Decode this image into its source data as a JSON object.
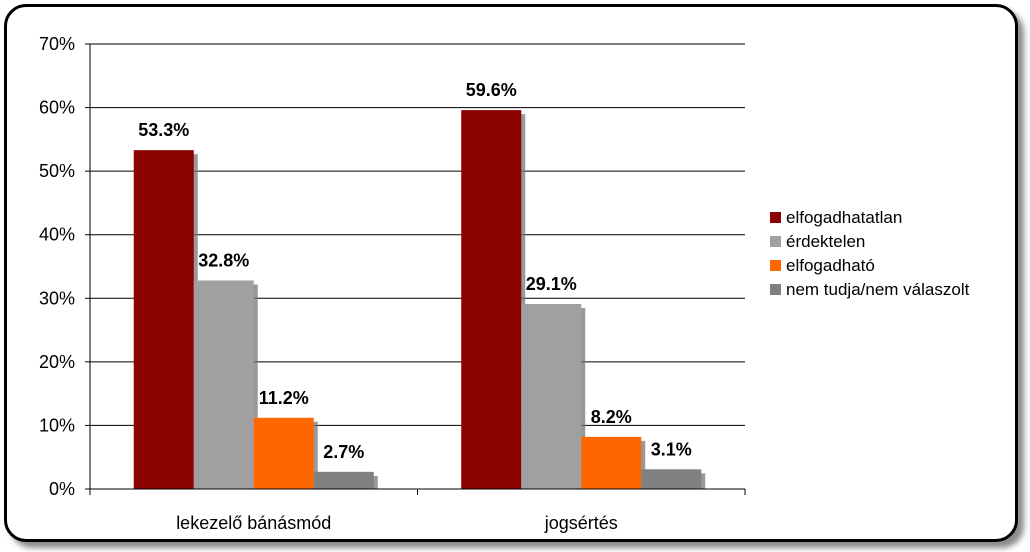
{
  "chart_data": {
    "type": "bar",
    "title": "",
    "xlabel": "",
    "ylabel": "",
    "categories": [
      "lekezelő bánásmód",
      "jogsértés"
    ],
    "series": [
      {
        "name": "elfogadhatatlan",
        "values": [
          53.3,
          59.6
        ],
        "labels": [
          "53.3%",
          "59.6%"
        ],
        "color": "#8B0000"
      },
      {
        "name": "érdektelen",
        "values": [
          32.8,
          29.1
        ],
        "labels": [
          "32.8%",
          "29.1%"
        ],
        "color": "#A0A0A0"
      },
      {
        "name": "elfogadható",
        "values": [
          11.2,
          8.2
        ],
        "labels": [
          "11.2%",
          "8.2%"
        ],
        "color": "#FF6600"
      },
      {
        "name": "nem tudja/nem válaszolt",
        "values": [
          2.7,
          3.1
        ],
        "labels": [
          "2.7%",
          "3.1%"
        ],
        "color": "#808080"
      }
    ],
    "ylim": [
      0,
      70
    ],
    "yticks": [
      0,
      10,
      20,
      30,
      40,
      50,
      60,
      70
    ],
    "ytick_labels": [
      "0%",
      "10%",
      "20%",
      "30%",
      "40%",
      "50%",
      "60%",
      "70%"
    ],
    "grid": true,
    "legend_position": "right"
  }
}
